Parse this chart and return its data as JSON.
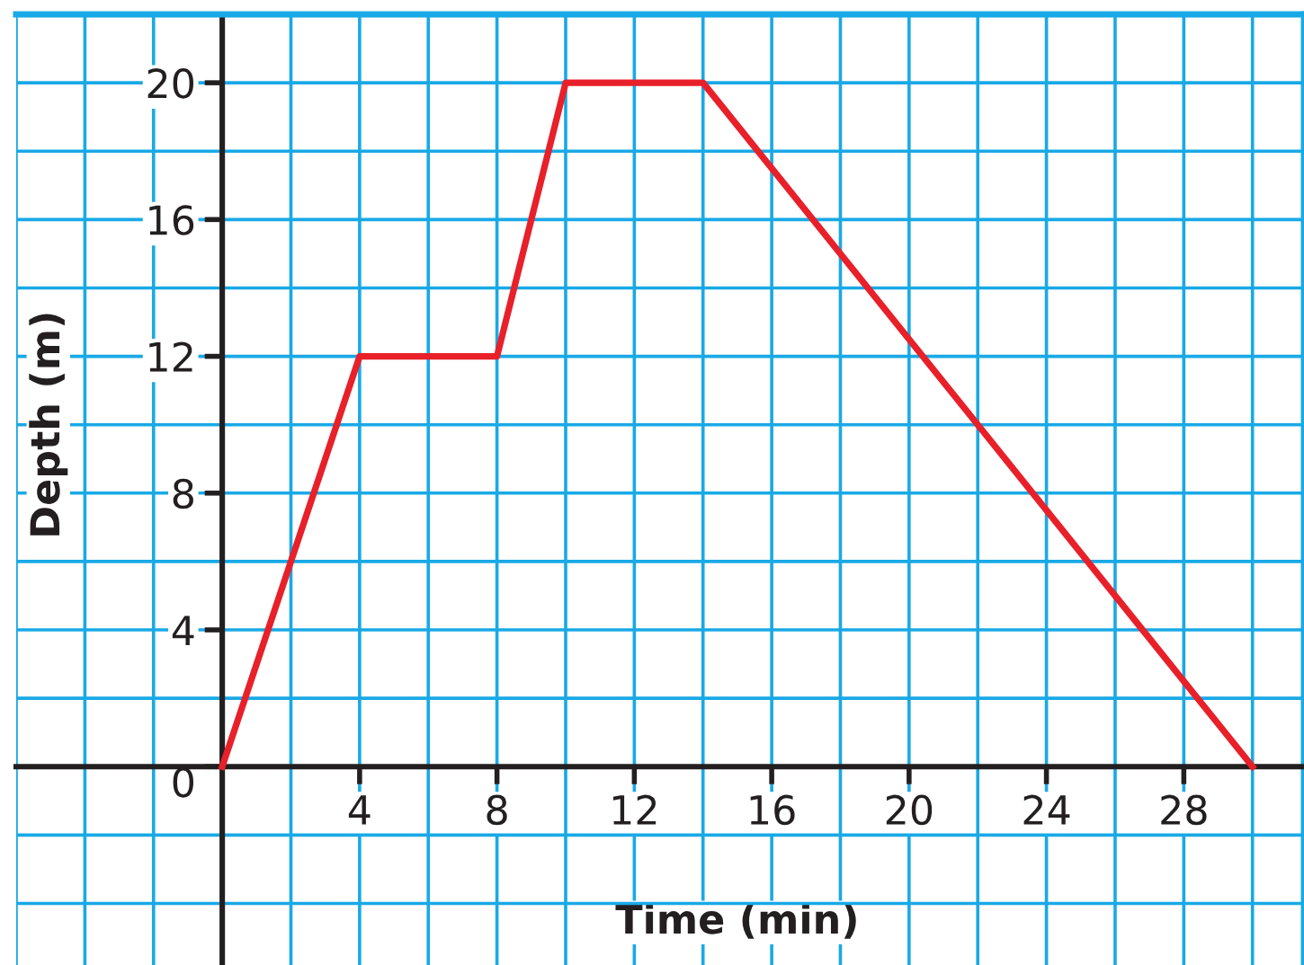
{
  "chart_data": {
    "type": "line",
    "xlabel": "Time (min)",
    "ylabel": "Depth (m)",
    "series": [
      {
        "color": "#e8202a",
        "x": [
          0,
          4,
          8,
          10,
          14,
          30
        ],
        "values": [
          0,
          12,
          12,
          20,
          20,
          0
        ]
      }
    ],
    "xlim": [
      -6,
      31.5
    ],
    "ylim": [
      -5.8,
      22
    ],
    "xticks": [
      {
        "value": -6,
        "label": null
      },
      {
        "value": -4,
        "label": null
      },
      {
        "value": -2,
        "label": null
      },
      {
        "value": 0,
        "label": null
      },
      {
        "value": 2,
        "label": null
      },
      4,
      {
        "value": 6,
        "label": null
      },
      8,
      {
        "value": 10,
        "label": null
      },
      12,
      {
        "value": 14,
        "label": null
      },
      16,
      {
        "value": 18,
        "label": null
      },
      20,
      {
        "value": 22,
        "label": null
      },
      24,
      {
        "value": 26,
        "label": null
      },
      28,
      {
        "value": 30,
        "label": null
      }
    ],
    "yticks": [
      {
        "value": -4,
        "label": null
      },
      {
        "value": -2,
        "label": null
      },
      0,
      {
        "value": 2,
        "label": null
      },
      4,
      {
        "value": 6,
        "label": null
      },
      8,
      {
        "value": 10,
        "label": null
      },
      12,
      {
        "value": 14,
        "label": null
      },
      16,
      {
        "value": 18,
        "label": null
      },
      20,
      {
        "value": 22,
        "label": null
      }
    ],
    "grid": true,
    "marker": "none",
    "line_style": "solid"
  }
}
